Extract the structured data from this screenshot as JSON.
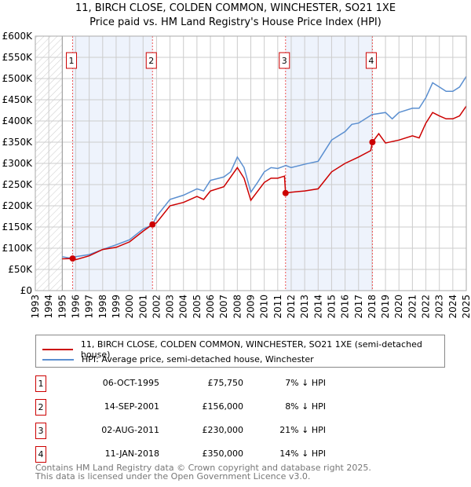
{
  "chart_data": {
    "type": "line",
    "title": "11, BIRCH CLOSE, COLDEN COMMON, WINCHESTER, SO21 1XE",
    "subtitle": "Price paid vs. HM Land Registry's House Price Index (HPI)",
    "xlim": [
      1993,
      2025
    ],
    "ylim": [
      0,
      600000
    ],
    "x_ticks": [
      "1993",
      "1994",
      "1995",
      "1996",
      "1997",
      "1998",
      "1999",
      "2000",
      "2001",
      "2002",
      "2003",
      "2004",
      "2005",
      "2006",
      "2007",
      "2008",
      "2009",
      "2010",
      "2011",
      "2012",
      "2013",
      "2014",
      "2015",
      "2016",
      "2017",
      "2018",
      "2019",
      "2020",
      "2021",
      "2022",
      "2023",
      "2024",
      "2025"
    ],
    "y_ticks": [
      "£0",
      "£50K",
      "£100K",
      "£150K",
      "£200K",
      "£250K",
      "£300K",
      "£350K",
      "£400K",
      "£450K",
      "£500K",
      "£550K",
      "£600K"
    ],
    "grid": true,
    "series": [
      {
        "name": "11, BIRCH CLOSE, COLDEN COMMON, WINCHESTER, SO21 1XE (semi-detached house)",
        "color": "#cc0000",
        "x": [
          1995,
          1995.77,
          1996,
          1997,
          1998,
          1999,
          2000,
          2001,
          2001.7,
          2002,
          2003,
          2004,
          2005,
          2005.5,
          2006,
          2007,
          2008,
          2008.5,
          2009,
          2010,
          2010.5,
          2011,
          2011.5,
          2011.58,
          2012,
          2013,
          2014,
          2014.5,
          2015,
          2016,
          2017,
          2017.9,
          2018.03,
          2018.5,
          2019,
          2020,
          2021,
          2021.5,
          2022,
          2022.5,
          2023,
          2023.5,
          2024,
          2024.5,
          2025
        ],
        "y": [
          75000,
          75750,
          73000,
          82000,
          97000,
          102000,
          115000,
          140000,
          156000,
          160000,
          200000,
          208000,
          222000,
          215000,
          235000,
          245000,
          290000,
          265000,
          213000,
          255000,
          265000,
          265000,
          270000,
          230000,
          232000,
          235000,
          240000,
          260000,
          280000,
          300000,
          315000,
          330000,
          350000,
          370000,
          348000,
          355000,
          365000,
          360000,
          395000,
          420000,
          412000,
          405000,
          405000,
          412000,
          435000
        ]
      },
      {
        "name": "HPI: Average price, semi-detached house, Winchester",
        "color": "#5b8fd0",
        "x": [
          1995,
          1995.5,
          1996,
          1997,
          1998,
          1999,
          2000,
          2001,
          2001.7,
          2002,
          2003,
          2004,
          2005,
          2005.5,
          2006,
          2007,
          2007.5,
          2008,
          2008.5,
          2009,
          2009.5,
          2010,
          2010.5,
          2011,
          2011.6,
          2012,
          2013,
          2014,
          2014.5,
          2015,
          2016,
          2016.5,
          2017,
          2018,
          2019,
          2019.5,
          2020,
          2021,
          2021.5,
          2022,
          2022.5,
          2023,
          2023.5,
          2024,
          2024.5,
          2025
        ],
        "y": [
          80000,
          77000,
          80000,
          85000,
          97000,
          108000,
          120000,
          145000,
          155000,
          175000,
          215000,
          225000,
          240000,
          235000,
          260000,
          268000,
          280000,
          315000,
          290000,
          232000,
          255000,
          280000,
          290000,
          288000,
          295000,
          290000,
          298000,
          305000,
          330000,
          355000,
          375000,
          392000,
          395000,
          415000,
          420000,
          405000,
          420000,
          430000,
          430000,
          455000,
          490000,
          480000,
          470000,
          470000,
          480000,
          505000
        ]
      }
    ],
    "sales": [
      {
        "label": "1",
        "x": 1995.77,
        "y": 75750,
        "date": "06-OCT-1995",
        "price": "£75,750",
        "hpi": "7% ↓ HPI"
      },
      {
        "label": "2",
        "x": 2001.7,
        "y": 156000,
        "date": "14-SEP-2001",
        "price": "£156,000",
        "hpi": "8% ↓ HPI"
      },
      {
        "label": "3",
        "x": 2011.58,
        "y": 230000,
        "date": "02-AUG-2011",
        "price": "£230,000",
        "hpi": "21% ↓ HPI"
      },
      {
        "label": "4",
        "x": 2018.03,
        "y": 350000,
        "date": "11-JAN-2018",
        "price": "£350,000",
        "hpi": "14% ↓ HPI"
      }
    ],
    "shaded": [
      [
        1995.77,
        2001.7
      ],
      [
        2011.58,
        2018.03
      ]
    ],
    "hatched": [
      1993,
      1995
    ],
    "legend": "below"
  },
  "footer": {
    "line1": "Contains HM Land Registry data © Crown copyright and database right 2025.",
    "line2": "This data is licensed under the Open Government Licence v3.0."
  }
}
